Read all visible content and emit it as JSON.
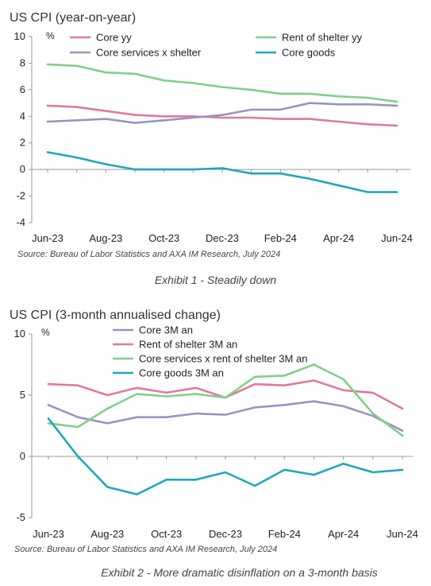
{
  "chart_data": [
    {
      "type": "line",
      "title": "US CPI (year-on-year)",
      "unit": "%",
      "ylim": [
        -4,
        10
      ],
      "yticks": [
        10,
        8,
        6,
        4,
        2,
        0,
        -2,
        -4
      ],
      "grid": false,
      "legend_position": "top",
      "x": [
        "Jun-23",
        "Jul-23",
        "Aug-23",
        "Sep-23",
        "Oct-23",
        "Nov-23",
        "Dec-23",
        "Jan-24",
        "Feb-24",
        "Mar-24",
        "Apr-24",
        "May-24",
        "Jun-24"
      ],
      "xtick_labels": [
        "Jun-23",
        "Aug-23",
        "Oct-23",
        "Dec-23",
        "Feb-24",
        "Apr-24",
        "Jun-24"
      ],
      "series": [
        {
          "name": "Core yy",
          "color": "#e07a9a",
          "values": [
            4.8,
            4.7,
            4.4,
            4.1,
            4.0,
            4.0,
            3.9,
            3.9,
            3.8,
            3.8,
            3.6,
            3.4,
            3.3
          ]
        },
        {
          "name": "Rent of shelter yy",
          "color": "#7fd08a",
          "values": [
            7.9,
            7.8,
            7.3,
            7.2,
            6.7,
            6.5,
            6.2,
            6.0,
            5.7,
            5.7,
            5.5,
            5.4,
            5.1
          ]
        },
        {
          "name": "Core services x shelter",
          "color": "#9a93c2",
          "values": [
            3.6,
            3.7,
            3.8,
            3.5,
            3.7,
            3.9,
            4.1,
            4.5,
            4.5,
            5.0,
            4.9,
            4.9,
            4.8
          ]
        },
        {
          "name": "Core goods",
          "color": "#1fa8b8",
          "values": [
            1.3,
            0.9,
            0.4,
            0.0,
            0.0,
            0.0,
            0.1,
            -0.3,
            -0.3,
            -0.7,
            -1.2,
            -1.7,
            -1.7
          ]
        }
      ],
      "source": "Source: Bureau of Labor Statistics and AXA IM Research, July 2024",
      "caption": "Exhibit 1 - Steadily down"
    },
    {
      "type": "line",
      "title": "US CPI (3-month annualised change)",
      "unit": "%",
      "ylim": [
        -5,
        10
      ],
      "yticks": [
        10,
        5,
        0,
        -5
      ],
      "grid": false,
      "legend_position": "top",
      "x": [
        "Jun-23",
        "Jul-23",
        "Aug-23",
        "Sep-23",
        "Oct-23",
        "Nov-23",
        "Dec-23",
        "Jan-24",
        "Feb-24",
        "Mar-24",
        "Apr-24",
        "May-24",
        "Jun-24"
      ],
      "xtick_labels": [
        "Jun-23",
        "Aug-23",
        "Oct-23",
        "Dec-23",
        "Feb-24",
        "Apr-24",
        "Jun-24"
      ],
      "series": [
        {
          "name": "Core 3M an",
          "color": "#9a93c2",
          "values": [
            4.2,
            3.2,
            2.7,
            3.2,
            3.2,
            3.5,
            3.4,
            4.0,
            4.2,
            4.5,
            4.1,
            3.3,
            2.1
          ]
        },
        {
          "name": "Rent of shelter 3M an",
          "color": "#e07a9a",
          "values": [
            5.9,
            5.8,
            5.0,
            5.6,
            5.2,
            5.6,
            4.8,
            5.9,
            5.8,
            6.2,
            5.4,
            5.2,
            3.9
          ]
        },
        {
          "name": "Core services x rent of shelter 3M an",
          "color": "#7fd08a",
          "values": [
            2.7,
            2.4,
            3.9,
            5.1,
            4.9,
            5.1,
            4.8,
            6.5,
            6.6,
            7.5,
            6.3,
            3.5,
            1.7
          ]
        },
        {
          "name": "Core goods 3M an",
          "color": "#1fa8b8",
          "values": [
            3.1,
            0.0,
            -2.5,
            -3.1,
            -1.9,
            -1.9,
            -1.3,
            -2.4,
            -1.1,
            -1.5,
            -0.6,
            -1.3,
            -1.1
          ]
        }
      ],
      "source": "Source: Bureau of Labor Statistics and AXA IM Research, July 2024",
      "caption": "Exhibit 2 - More dramatic disinflation on a 3-month basis"
    }
  ]
}
